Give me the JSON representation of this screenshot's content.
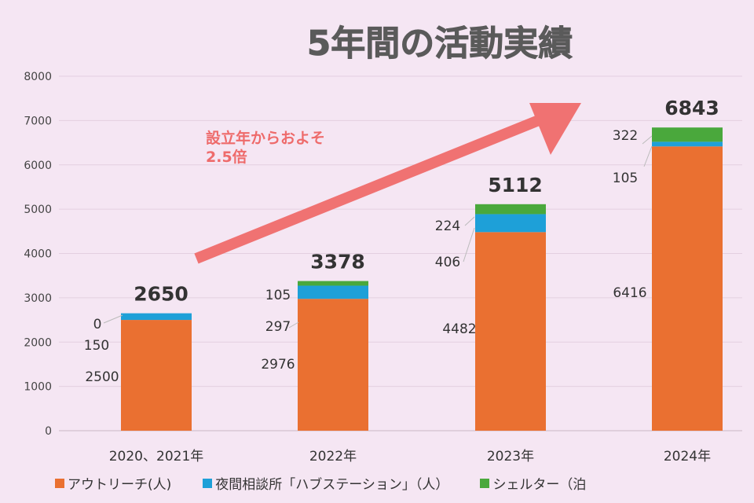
{
  "chart_data": {
    "type": "bar",
    "stacked": true,
    "title": "5年間の活動実績",
    "categories": [
      "2020、2021年",
      "2022年",
      "2023年",
      "2024年"
    ],
    "series": [
      {
        "name": "アウトリーチ(人)",
        "color": "#ea7031",
        "values": [
          2500,
          2976,
          4482,
          6416
        ]
      },
      {
        "name": "夜間相談所「ハブステーション」（人）",
        "color": "#1ea0d8",
        "values": [
          150,
          297,
          406,
          105
        ]
      },
      {
        "name": "シェルター（泊",
        "color": "#4aa83c",
        "values": [
          0,
          105,
          224,
          322
        ]
      }
    ],
    "totals": [
      "2650",
      "3378",
      "5112",
      "6843"
    ],
    "labels": [
      [
        "2500",
        "150",
        "0"
      ],
      [
        "2976",
        "297",
        "105"
      ],
      [
        "4482",
        "406",
        "224"
      ],
      [
        "6416",
        "105",
        "322"
      ]
    ],
    "yticks": [
      "0",
      "1000",
      "2000",
      "3000",
      "4000",
      "5000",
      "6000",
      "7000",
      "8000"
    ],
    "ylim": [
      0,
      8000
    ],
    "grid": true,
    "legend_position": "bottom",
    "annotation": {
      "line1": "設立年からおよそ",
      "line2": "2.5倍",
      "color": "#ee6b6b"
    }
  }
}
